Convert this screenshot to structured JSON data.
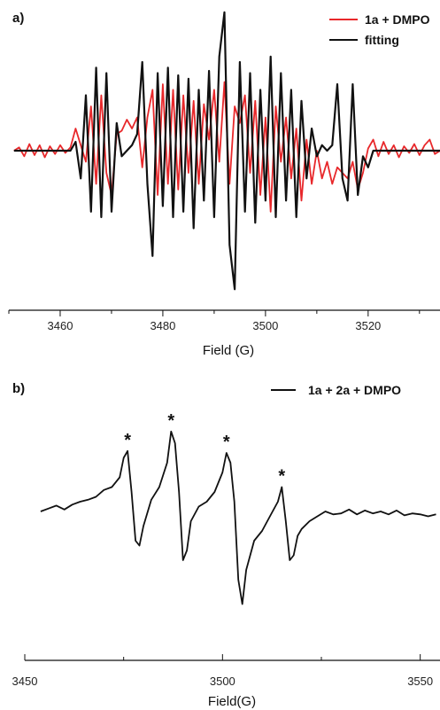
{
  "colors": {
    "experimental": "#e8282b",
    "fitting": "#111111",
    "axis": "#111111"
  },
  "chart_data": [
    {
      "panel_label": "a)",
      "type": "line",
      "xlabel": "Field (G)",
      "xlim": [
        3450,
        3534
      ],
      "x_ticks": [
        3460,
        3480,
        3500,
        3520
      ],
      "legend_position": "top-right",
      "series": [
        {
          "name": "1a + DMPO",
          "color": "#e8282b",
          "x": [
            3451,
            3452,
            3453,
            3454,
            3455,
            3456,
            3457,
            3458,
            3459,
            3460,
            3461,
            3462,
            3463,
            3464,
            3465,
            3466,
            3467,
            3468,
            3469,
            3470,
            3471,
            3472,
            3473,
            3474,
            3475,
            3476,
            3477,
            3478,
            3479,
            3480,
            3481,
            3482,
            3483,
            3484,
            3485,
            3486,
            3487,
            3488,
            3489,
            3490,
            3491,
            3492,
            3493,
            3494,
            3495,
            3496,
            3497,
            3498,
            3499,
            3500,
            3501,
            3502,
            3503,
            3504,
            3505,
            3506,
            3507,
            3508,
            3509,
            3510,
            3511,
            3512,
            3513,
            3514,
            3515,
            3516,
            3517,
            3518,
            3519,
            3520,
            3521,
            3522,
            3523,
            3524,
            3525,
            3526,
            3527,
            3528,
            3529,
            3530,
            3531,
            3532,
            3533,
            3534
          ],
          "y": [
            0.0,
            0.03,
            -0.05,
            0.06,
            -0.04,
            0.05,
            -0.06,
            0.04,
            -0.03,
            0.05,
            -0.02,
            0.03,
            0.2,
            0.05,
            -0.1,
            0.4,
            -0.3,
            0.5,
            -0.2,
            -0.4,
            0.15,
            0.18,
            0.28,
            0.2,
            0.3,
            -0.15,
            0.3,
            0.55,
            -0.4,
            0.6,
            -0.3,
            0.55,
            -0.35,
            0.5,
            -0.2,
            0.45,
            -0.3,
            0.42,
            0.1,
            0.55,
            -0.1,
            0.62,
            -0.3,
            0.4,
            0.25,
            0.5,
            -0.2,
            0.45,
            -0.4,
            0.3,
            -0.55,
            0.4,
            -0.1,
            0.3,
            -0.25,
            0.2,
            -0.45,
            0.1,
            -0.3,
            0.0,
            -0.25,
            -0.1,
            -0.3,
            -0.15,
            -0.2,
            -0.25,
            -0.1,
            -0.35,
            -0.2,
            0.02,
            0.1,
            -0.05,
            0.08,
            -0.03,
            0.05,
            -0.06,
            0.04,
            -0.02,
            0.06,
            -0.04,
            0.05,
            0.1,
            -0.03,
            0.0
          ]
        },
        {
          "name": "fitting",
          "color": "#111111",
          "x": [
            3451,
            3462,
            3463,
            3464,
            3465,
            3466,
            3467,
            3468,
            3469,
            3470,
            3471,
            3472,
            3473,
            3474,
            3475,
            3476,
            3477,
            3478,
            3479,
            3480,
            3481,
            3482,
            3483,
            3484,
            3485,
            3486,
            3487,
            3488,
            3489,
            3490,
            3491,
            3492,
            3493,
            3494,
            3495,
            3496,
            3497,
            3498,
            3499,
            3500,
            3501,
            3502,
            3503,
            3504,
            3505,
            3506,
            3507,
            3508,
            3509,
            3510,
            3511,
            3512,
            3513,
            3514,
            3515,
            3516,
            3517,
            3518,
            3519,
            3520,
            3521,
            3534
          ],
          "y": [
            0.0,
            0.0,
            0.08,
            -0.25,
            0.5,
            -0.55,
            0.75,
            -0.6,
            0.7,
            -0.55,
            0.25,
            -0.05,
            0.0,
            0.05,
            0.15,
            0.8,
            -0.3,
            -0.95,
            0.7,
            -0.5,
            0.75,
            -0.6,
            0.68,
            -0.55,
            0.65,
            -0.7,
            0.55,
            -0.45,
            0.72,
            -0.6,
            0.85,
            1.25,
            -0.85,
            -1.25,
            0.8,
            -0.55,
            0.7,
            -0.65,
            0.55,
            -0.45,
            0.85,
            -0.6,
            0.7,
            -0.45,
            0.55,
            -0.6,
            0.45,
            -0.25,
            0.2,
            -0.05,
            0.05,
            0.0,
            0.05,
            0.6,
            -0.25,
            -0.45,
            0.6,
            -0.4,
            -0.05,
            -0.15,
            0.0,
            0.0
          ]
        }
      ]
    },
    {
      "panel_label": "b)",
      "type": "line",
      "xlabel": "Field(G)",
      "xlim": [
        3450,
        3555
      ],
      "x_ticks": [
        3450,
        3500,
        3550
      ],
      "legend_position": "top-right",
      "annotations": [
        "*",
        "*",
        "*",
        "*"
      ],
      "annotation_x": [
        3476,
        3487,
        3501,
        3515
      ],
      "series": [
        {
          "name": "1a + 2a + DMPO",
          "color": "#111111",
          "x": [
            3454,
            3456,
            3458,
            3460,
            3462,
            3464,
            3466,
            3468,
            3470,
            3472,
            3474,
            3475,
            3476,
            3477,
            3478,
            3479,
            3480,
            3482,
            3484,
            3486,
            3487,
            3488,
            3489,
            3490,
            3491,
            3492,
            3494,
            3496,
            3498,
            3500,
            3501,
            3502,
            3503,
            3504,
            3505,
            3506,
            3507,
            3508,
            3510,
            3512,
            3514,
            3515,
            3516,
            3517,
            3518,
            3519,
            3520,
            3522,
            3524,
            3526,
            3528,
            3530,
            3532,
            3534,
            3536,
            3538,
            3540,
            3542,
            3544,
            3546,
            3548,
            3550,
            3552,
            3554
          ],
          "y": [
            0.0,
            0.03,
            0.06,
            0.02,
            0.07,
            0.1,
            0.12,
            0.15,
            0.22,
            0.25,
            0.35,
            0.55,
            0.62,
            0.2,
            -0.3,
            -0.35,
            -0.15,
            0.12,
            0.25,
            0.5,
            0.82,
            0.7,
            0.2,
            -0.5,
            -0.4,
            -0.1,
            0.05,
            0.1,
            0.2,
            0.4,
            0.6,
            0.5,
            0.1,
            -0.7,
            -0.95,
            -0.6,
            -0.45,
            -0.3,
            -0.2,
            -0.05,
            0.1,
            0.25,
            -0.1,
            -0.5,
            -0.45,
            -0.25,
            -0.18,
            -0.1,
            -0.05,
            0.0,
            -0.03,
            -0.02,
            0.02,
            -0.03,
            0.01,
            -0.02,
            0.0,
            -0.03,
            0.01,
            -0.04,
            -0.02,
            -0.03,
            -0.05,
            -0.03
          ]
        }
      ]
    }
  ]
}
